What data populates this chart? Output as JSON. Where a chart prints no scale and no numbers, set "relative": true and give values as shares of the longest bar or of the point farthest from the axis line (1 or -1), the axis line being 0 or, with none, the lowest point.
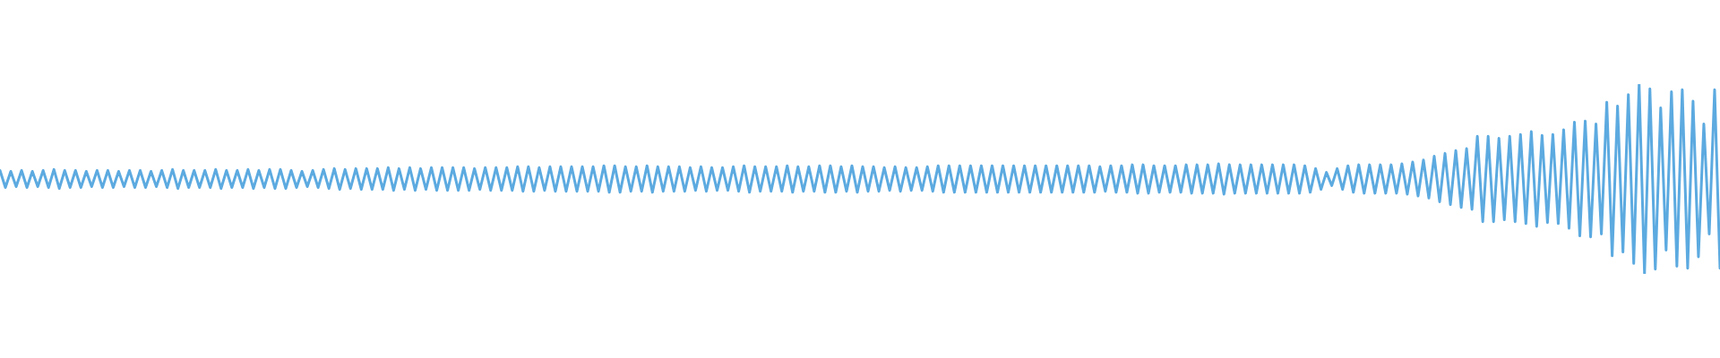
{
  "chart_data": {
    "type": "line",
    "relative": true,
    "color": "#5caae0",
    "categories": [
      null,
      null,
      null,
      null,
      null,
      null,
      null,
      null,
      null,
      null,
      null,
      null,
      null,
      null,
      null,
      null,
      null,
      null,
      null,
      null,
      null,
      null,
      null,
      null,
      null,
      null,
      null,
      null,
      null,
      null,
      null,
      null,
      null,
      null,
      null,
      null,
      null,
      null,
      null,
      null,
      null,
      null,
      null,
      null,
      null,
      null,
      null,
      null,
      null,
      null,
      null,
      null,
      null,
      null,
      null,
      null,
      null,
      null,
      null,
      null,
      null,
      null,
      null,
      null,
      null,
      null,
      null,
      null,
      null,
      null,
      null,
      null,
      null,
      null,
      null,
      null,
      null,
      null,
      null,
      null,
      null,
      null,
      null,
      null,
      null,
      null,
      null,
      null,
      null,
      null,
      null,
      null,
      null,
      null,
      null,
      null,
      null,
      null,
      null,
      null,
      null,
      null,
      null,
      null,
      null,
      null,
      null,
      null,
      null,
      null,
      null,
      null,
      null,
      null,
      null,
      null,
      null,
      null,
      null,
      null,
      null,
      null,
      null,
      null,
      null,
      null,
      null,
      null,
      null,
      null,
      null,
      null,
      null,
      null,
      null,
      null,
      null,
      null,
      null,
      null,
      null,
      null,
      null,
      null,
      null,
      null,
      null,
      null,
      null,
      null,
      null,
      null,
      null,
      null,
      null,
      null,
      null,
      null,
      null,
      null,
      null,
      null,
      null,
      null,
      null,
      null,
      null,
      null,
      null,
      null,
      null,
      null,
      null,
      null,
      null,
      null,
      null,
      null,
      null,
      null,
      null,
      null,
      null,
      null,
      null,
      null,
      null,
      null,
      null,
      null,
      null,
      null,
      null,
      null,
      null,
      null,
      null,
      null,
      null,
      null,
      null,
      null,
      null,
      null,
      null,
      null,
      null,
      null,
      null,
      null,
      null,
      null,
      null,
      null,
      null,
      null,
      null,
      null,
      null,
      null,
      null,
      null,
      null,
      null,
      null,
      null,
      null,
      null,
      null,
      null,
      null,
      null,
      null,
      null,
      null,
      null,
      null,
      null,
      null,
      null,
      null,
      null,
      null,
      null,
      null,
      null,
      null,
      null,
      null,
      null,
      null,
      null,
      null,
      null,
      null,
      null,
      null,
      null,
      null,
      null,
      null,
      null,
      null,
      null,
      null,
      null,
      null,
      null,
      null,
      null,
      null,
      null,
      null,
      null,
      null,
      null,
      null,
      null,
      null,
      null,
      null,
      null,
      null,
      null,
      null,
      null,
      null,
      null,
      null,
      null,
      null,
      null,
      null,
      null,
      null,
      null,
      null,
      null,
      null,
      null,
      null,
      null,
      null,
      null,
      null,
      null,
      null,
      null,
      null,
      null,
      null,
      null,
      null,
      null,
      null,
      null,
      null,
      null,
      null,
      null
    ],
    "values": [
      0.545,
      0.455,
      0.54,
      0.46,
      0.545,
      0.455,
      0.54,
      0.46,
      0.545,
      0.455,
      0.55,
      0.45,
      0.545,
      0.455,
      0.545,
      0.455,
      0.54,
      0.46,
      0.545,
      0.455,
      0.545,
      0.455,
      0.54,
      0.46,
      0.545,
      0.455,
      0.545,
      0.455,
      0.54,
      0.46,
      0.545,
      0.455,
      0.55,
      0.45,
      0.545,
      0.455,
      0.545,
      0.455,
      0.545,
      0.455,
      0.55,
      0.45,
      0.545,
      0.455,
      0.545,
      0.455,
      0.55,
      0.45,
      0.545,
      0.455,
      0.55,
      0.45,
      0.55,
      0.45,
      0.545,
      0.455,
      0.54,
      0.46,
      0.545,
      0.455,
      0.55,
      0.45,
      0.555,
      0.445,
      0.55,
      0.45,
      0.555,
      0.445,
      0.555,
      0.445,
      0.555,
      0.445,
      0.56,
      0.44,
      0.555,
      0.445,
      0.56,
      0.44,
      0.555,
      0.445,
      0.56,
      0.44,
      0.56,
      0.44,
      0.56,
      0.44,
      0.56,
      0.44,
      0.555,
      0.445,
      0.56,
      0.44,
      0.56,
      0.44,
      0.56,
      0.44,
      0.565,
      0.435,
      0.565,
      0.435,
      0.56,
      0.44,
      0.565,
      0.435,
      0.565,
      0.435,
      0.565,
      0.435,
      0.565,
      0.435,
      0.565,
      0.435,
      0.57,
      0.43,
      0.57,
      0.43,
      0.565,
      0.435,
      0.565,
      0.435,
      0.57,
      0.43,
      0.565,
      0.435,
      0.565,
      0.435,
      0.565,
      0.435,
      0.56,
      0.44,
      0.565,
      0.435,
      0.56,
      0.44,
      0.56,
      0.44,
      0.565,
      0.435,
      0.57,
      0.43,
      0.565,
      0.435,
      0.565,
      0.435,
      0.565,
      0.435,
      0.57,
      0.43,
      0.565,
      0.435,
      0.565,
      0.435,
      0.57,
      0.43,
      0.57,
      0.43,
      0.565,
      0.435,
      0.57,
      0.43,
      0.565,
      0.435,
      0.565,
      0.435,
      0.56,
      0.44,
      0.565,
      0.435,
      0.56,
      0.44,
      0.56,
      0.44,
      0.565,
      0.435,
      0.57,
      0.43,
      0.57,
      0.43,
      0.57,
      0.43,
      0.57,
      0.43,
      0.57,
      0.43,
      0.57,
      0.43,
      0.57,
      0.43,
      0.57,
      0.43,
      0.57,
      0.43,
      0.57,
      0.43,
      0.57,
      0.43,
      0.57,
      0.43,
      0.57,
      0.43,
      0.57,
      0.43,
      0.57,
      0.43,
      0.565,
      0.435,
      0.57,
      0.43,
      0.57,
      0.43,
      0.575,
      0.425,
      0.575,
      0.425,
      0.57,
      0.43,
      0.57,
      0.43,
      0.57,
      0.43,
      0.575,
      0.425,
      0.575,
      0.425,
      0.575,
      0.425,
      0.58,
      0.42,
      0.575,
      0.425,
      0.575,
      0.425,
      0.575,
      0.425,
      0.575,
      0.425,
      0.575,
      0.425,
      0.575,
      0.425,
      0.575,
      0.425,
      0.57,
      0.43,
      0.555,
      0.445,
      0.535,
      0.465,
      0.555,
      0.445,
      0.57,
      0.43,
      0.575,
      0.425,
      0.575,
      0.425,
      0.575,
      0.425,
      0.575,
      0.425,
      0.58,
      0.42,
      0.59,
      0.41,
      0.6,
      0.4,
      0.62,
      0.38,
      0.635,
      0.365,
      0.65,
      0.35,
      0.66,
      0.34,
      0.725,
      0.275,
      0.725,
      0.275,
      0.715,
      0.285,
      0.725,
      0.275,
      0.735,
      0.265,
      0.75,
      0.25,
      0.73,
      0.27,
      0.735,
      0.265,
      0.76,
      0.24,
      0.8,
      0.2,
      0.805,
      0.195,
      0.79,
      0.21,
      0.905,
      0.095,
      0.885,
      0.115,
      0.945,
      0.055,
      1,
      0,
      0.975,
      0.025,
      0.875,
      0.125,
      0.96,
      0.04,
      0.97,
      0.03,
      0.91,
      0.09,
      0.79,
      0.21,
      0.97,
      0.03
    ]
  }
}
